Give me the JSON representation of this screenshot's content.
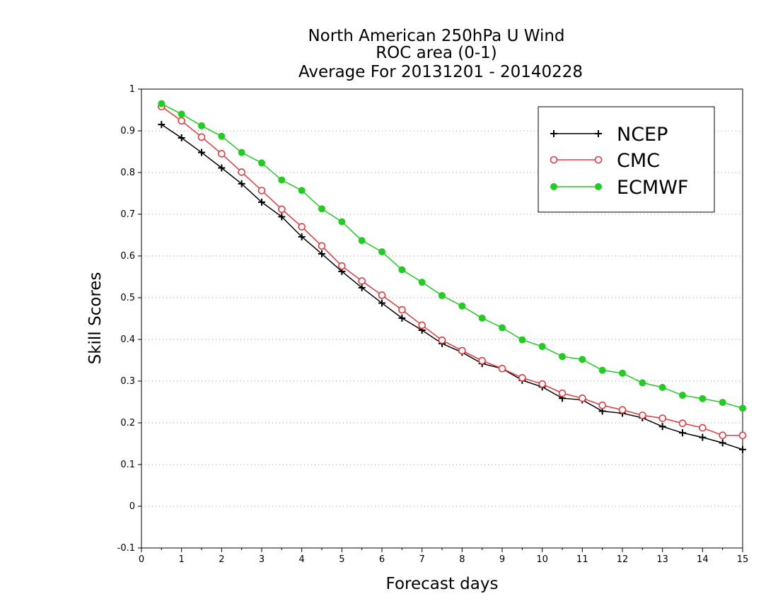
{
  "chart_data": {
    "type": "line",
    "title": [
      "North American 250hPa U Wind",
      "ROC area (0-1)",
      "Average For 20131201 - 20140228"
    ],
    "xlabel": "Forecast days",
    "ylabel": "Skill Scores",
    "xlim": [
      0,
      15
    ],
    "ylim": [
      -0.1,
      1
    ],
    "xticks": [
      "0",
      "1",
      "2",
      "3",
      "4",
      "5",
      "6",
      "7",
      "8",
      "9",
      "10",
      "11",
      "12",
      "13",
      "14",
      "15"
    ],
    "yticks": [
      "-0.1",
      "0",
      "0.1",
      "0.2",
      "0.3",
      "0.4",
      "0.5",
      "0.6",
      "0.7",
      "0.8",
      "0.9",
      "1"
    ],
    "grid": true,
    "legend_position": "top-right",
    "x": [
      0.5,
      1,
      1.5,
      2,
      2.5,
      3,
      3.5,
      4,
      4.5,
      5,
      5.5,
      6,
      6.5,
      7,
      7.5,
      8,
      8.5,
      9,
      9.5,
      10,
      10.5,
      11,
      11.5,
      12,
      12.5,
      13,
      13.5,
      14,
      14.5,
      15
    ],
    "series": [
      {
        "name": "NCEP",
        "color": "#000000",
        "marker": "plus",
        "values": [
          0.915,
          0.883,
          0.848,
          0.811,
          0.773,
          0.729,
          0.694,
          0.646,
          0.605,
          0.563,
          0.524,
          0.487,
          0.451,
          0.422,
          0.39,
          0.369,
          0.342,
          0.33,
          0.302,
          0.286,
          0.259,
          0.255,
          0.228,
          0.223,
          0.212,
          0.191,
          0.176,
          0.165,
          0.152,
          0.136
        ]
      },
      {
        "name": "CMC",
        "color": "#e8383d",
        "marker": "open-circle",
        "values": [
          0.958,
          0.924,
          0.885,
          0.845,
          0.801,
          0.757,
          0.712,
          0.67,
          0.624,
          0.576,
          0.54,
          0.506,
          0.471,
          0.434,
          0.398,
          0.373,
          0.349,
          0.33,
          0.308,
          0.293,
          0.271,
          0.259,
          0.242,
          0.231,
          0.218,
          0.211,
          0.199,
          0.188,
          0.17,
          0.17
        ]
      },
      {
        "name": "ECMWF",
        "color": "#22cc22",
        "marker": "filled-circle",
        "values": [
          0.965,
          0.94,
          0.912,
          0.887,
          0.848,
          0.823,
          0.782,
          0.757,
          0.713,
          0.682,
          0.637,
          0.61,
          0.567,
          0.537,
          0.505,
          0.48,
          0.451,
          0.428,
          0.399,
          0.383,
          0.359,
          0.352,
          0.326,
          0.319,
          0.296,
          0.285,
          0.266,
          0.258,
          0.249,
          0.235
        ]
      }
    ]
  }
}
